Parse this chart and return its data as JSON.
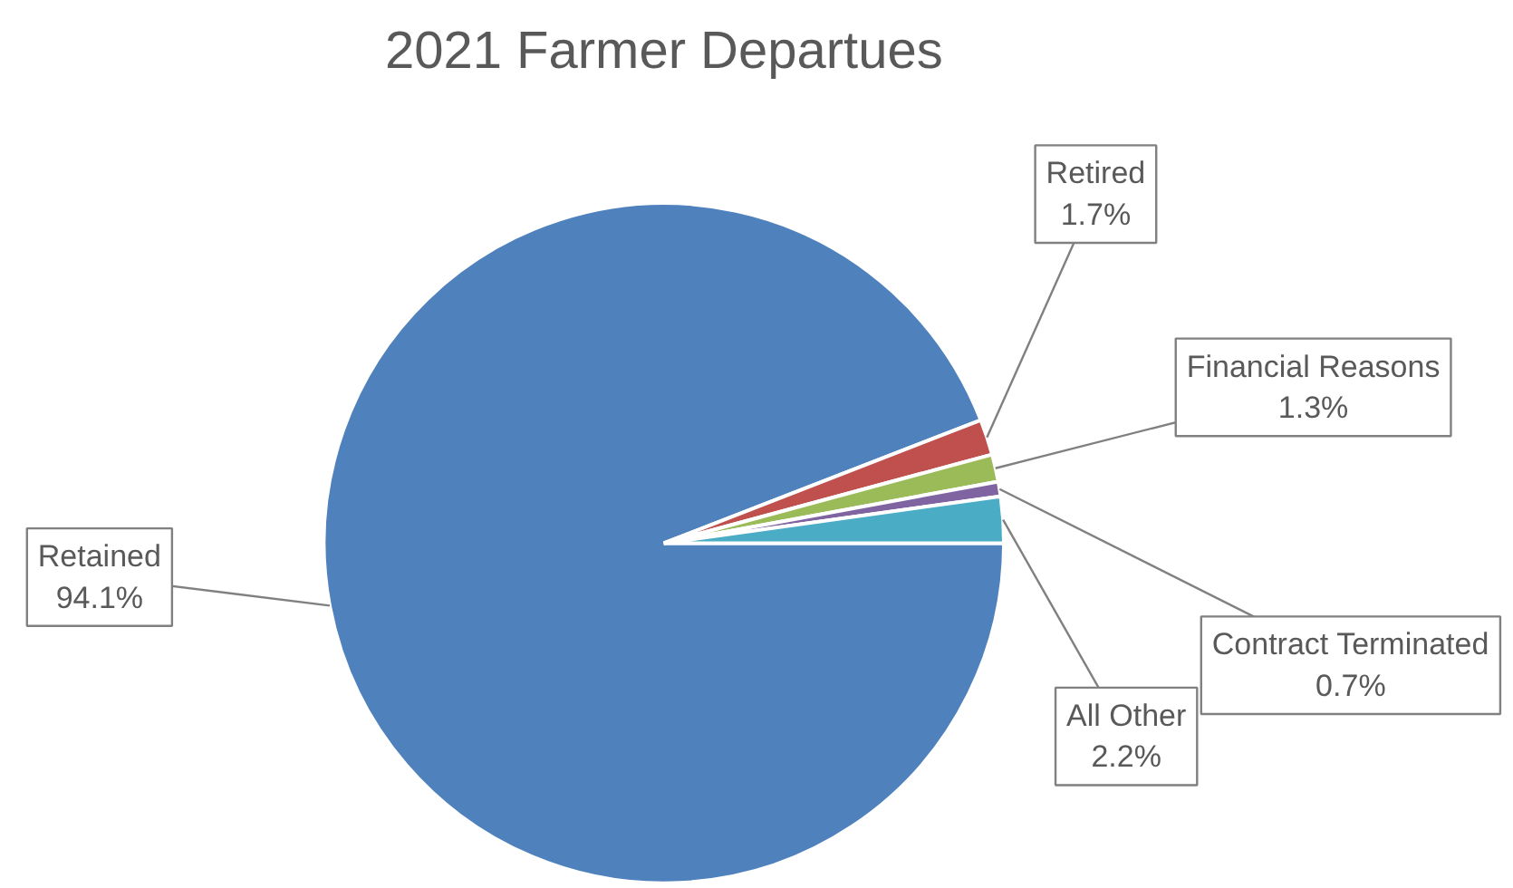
{
  "chart_data": {
    "type": "pie",
    "title": "2021 Farmer Departues",
    "categories": [
      "Retained",
      "Retired",
      "Financial Reasons",
      "Contract Terminated",
      "All Other"
    ],
    "values": [
      94.1,
      1.7,
      1.3,
      0.7,
      2.2
    ],
    "colors": [
      "#4f81bd",
      "#c0504d",
      "#9bbb59",
      "#8064a2",
      "#4bacc6"
    ],
    "value_labels": [
      "94.1%",
      "1.7%",
      "1.3%",
      "0.7%",
      "2.2%"
    ]
  }
}
